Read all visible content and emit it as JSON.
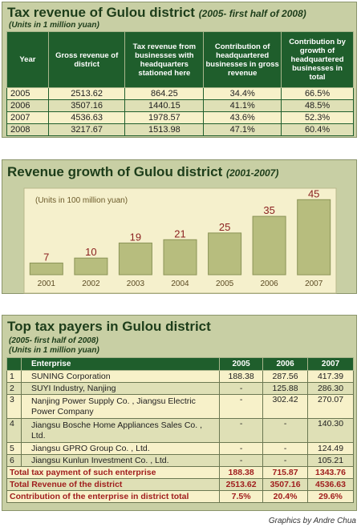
{
  "tax_table": {
    "title": "Tax revenue of Gulou district",
    "subtitle": "(2005- first half of 2008)",
    "units": "(Units in 1 million yuan)",
    "headers": [
      "Year",
      "Gross revenue of district",
      "Tax revenue from businesses with headquarters stationed here",
      "Contribution of headquartered businesses in gross revenue",
      "Contribution by growth of headquartered businesses in total"
    ],
    "rows": [
      [
        "2005",
        "2513.62",
        "864.25",
        "34.4%",
        "66.5%"
      ],
      [
        "2006",
        "3507.16",
        "1440.15",
        "41.1%",
        "48.5%"
      ],
      [
        "2007",
        "4536.63",
        "1978.57",
        "43.6%",
        "52.3%"
      ],
      [
        "2008",
        "3217.67",
        "1513.98",
        "47.1%",
        "60.4%"
      ]
    ]
  },
  "revenue_chart": {
    "title": "Revenue growth of Gulou district",
    "subtitle": "(2001-2007)",
    "units": "(Units in 100 million yuan)"
  },
  "chart_data": {
    "type": "bar",
    "title": "Revenue growth of Gulou district",
    "subtitle": "(2001-2007)",
    "ylabel": "(Units in 100 million yuan)",
    "categories": [
      "2001",
      "2002",
      "2003",
      "2004",
      "2005",
      "2006",
      "2007"
    ],
    "values": [
      7,
      10,
      19,
      21,
      25,
      35,
      45
    ],
    "ylim": [
      0,
      48
    ],
    "grid": false,
    "colors": {
      "bar": "#b7bd7e",
      "bar_edge": "#8a9356",
      "plot_bg": "#f5f0cc"
    }
  },
  "top_taxpayers": {
    "title": "Top tax payers in Gulou district",
    "subtitle": "(2005- first half of 2008)",
    "units": "(Units in 1 million yuan)",
    "headers": [
      "",
      "Enterprise",
      "2005",
      "2006",
      "2007"
    ],
    "rows": [
      [
        "1",
        "SUNING Corporation",
        "188.38",
        "287.56",
        "417.39"
      ],
      [
        "2",
        "SUYI Industry, Nanjing",
        "-",
        "125.88",
        "286.30"
      ],
      [
        "3",
        "Nanjing Power Supply Co. , Jiangsu Electric Power Company",
        "-",
        "302.42",
        "270.07"
      ],
      [
        "4",
        "Jiangsu Bosche Home Appliances Sales Co. , Ltd.",
        "-",
        "-",
        "140.30"
      ],
      [
        "5",
        "Jiangsu GPRO Group Co. , Ltd.",
        "-",
        "-",
        "124.49"
      ],
      [
        "6",
        "Jiangsu Kunlun Investment Co. , Ltd.",
        "-",
        "-",
        "105.21"
      ]
    ],
    "totals": [
      [
        "Total tax payment of such enterprise",
        "188.38",
        "715.87",
        "1343.76"
      ],
      [
        "Total Revenue of the district",
        "2513.62",
        "3507.16",
        "4536.63"
      ],
      [
        "Contribution of the enterprise in district total",
        "7.5%",
        "20.4%",
        "29.6%"
      ]
    ]
  },
  "credit": "Graphics by Andre Chua",
  "colors": {
    "dark_green": "#1f5e2c",
    "panel": "#c8cfa4",
    "cream_row": "#f7f1c9",
    "total_red": "#a01e1e"
  }
}
